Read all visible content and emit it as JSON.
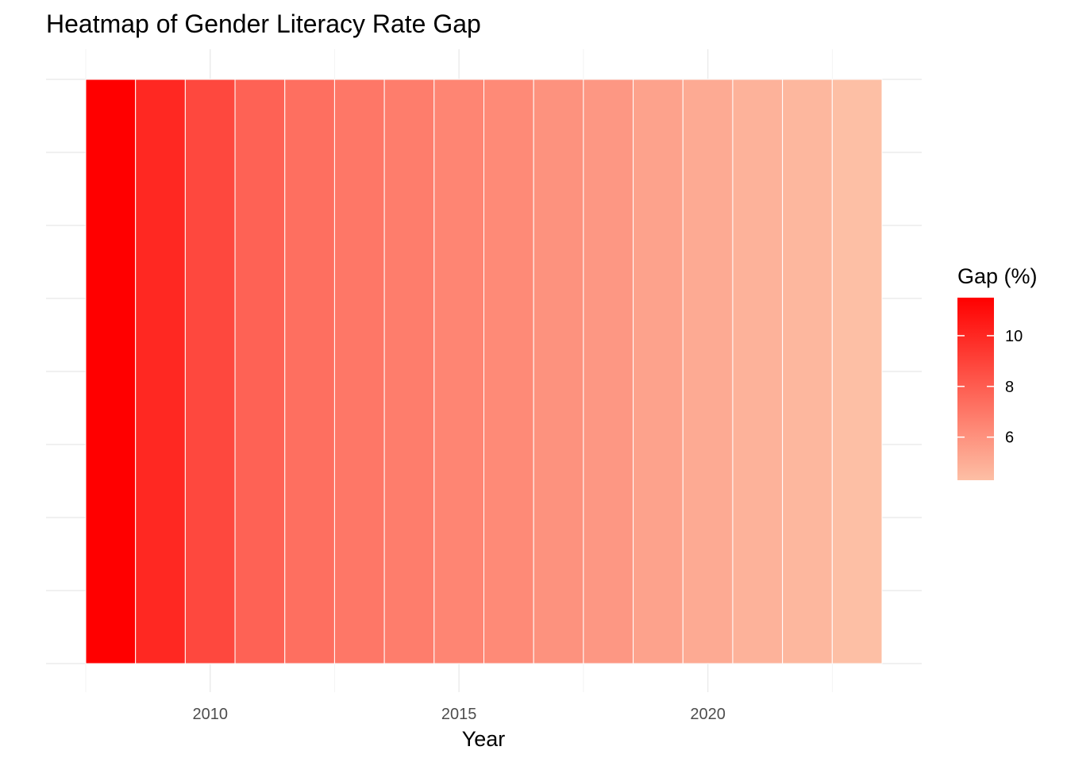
{
  "chart_data": {
    "type": "heatmap",
    "title": "Heatmap of Gender Literacy Rate Gap",
    "xlabel": "Year",
    "ylabel": "",
    "x": [
      2008,
      2009,
      2010,
      2011,
      2012,
      2013,
      2014,
      2015,
      2016,
      2017,
      2018,
      2019,
      2020,
      2021,
      2022,
      2023
    ],
    "values": [
      11.5,
      10.0,
      8.8,
      7.8,
      7.3,
      7.0,
      6.8,
      6.5,
      6.3,
      6.0,
      5.8,
      5.4,
      5.1,
      4.8,
      4.6,
      4.3
    ],
    "x_ticks": [
      2010,
      2015,
      2020
    ],
    "xlim": [
      2007.5,
      2023.5
    ],
    "grid": true,
    "legend": {
      "title": "Gap (%)",
      "position": "right",
      "ticks": [
        6,
        8,
        10
      ],
      "range": [
        4.3,
        11.5
      ],
      "color_low": "#fdbfa5",
      "color_high": "#ff0000"
    }
  }
}
